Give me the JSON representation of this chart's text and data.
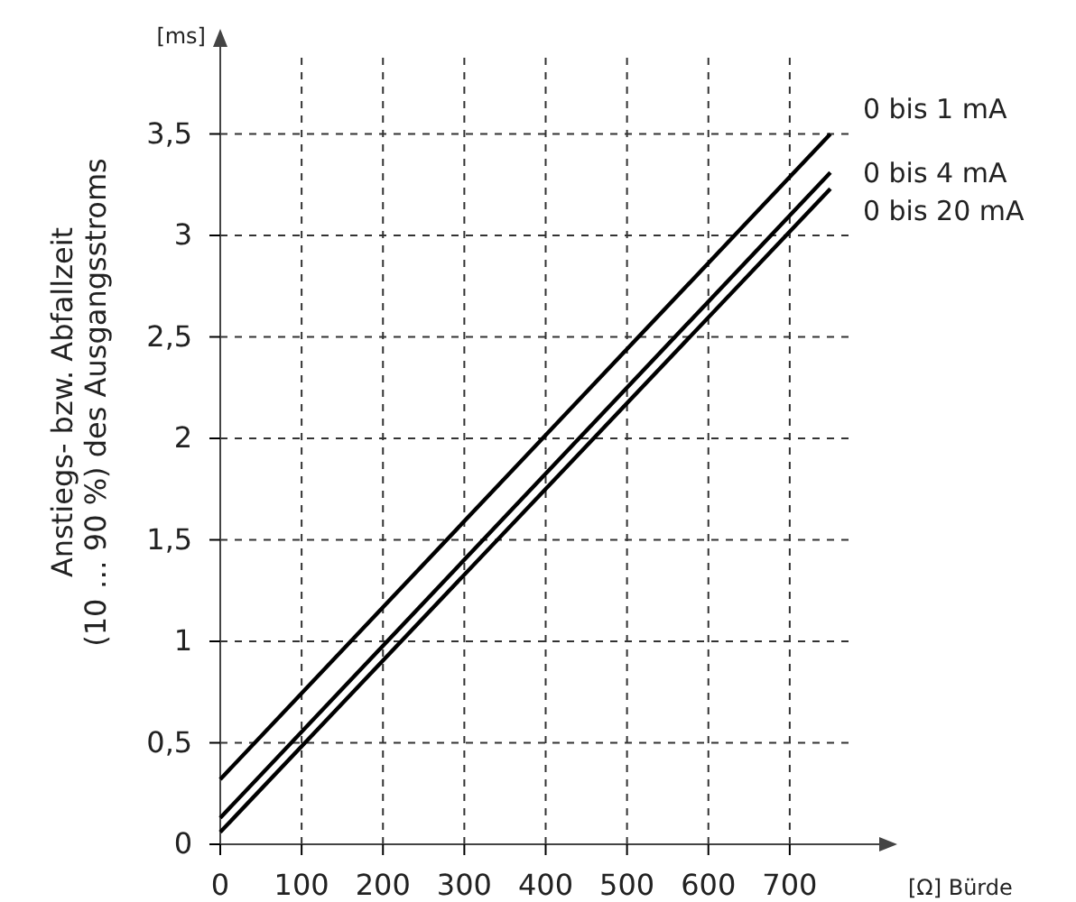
{
  "chart_data": {
    "type": "line",
    "xlabel": "[Ω] Bürde",
    "ylabel": "Anstiegs- bzw. Abfallzeit\n(10 … 90 %) des Ausgangsstroms",
    "annotations": [
      "[ms]"
    ],
    "x": [
      0,
      750
    ],
    "series": [
      {
        "name": "0 bis 1 mA",
        "color": "#000000",
        "values": [
          0.32,
          3.5
        ]
      },
      {
        "name": "0 bis 4 mA",
        "color": "#000000",
        "values": [
          0.13,
          3.31
        ]
      },
      {
        "name": "0 bis 20 mA",
        "color": "#000000",
        "values": [
          0.06,
          3.23
        ]
      }
    ],
    "xlim": [
      0,
      810
    ],
    "ylim": [
      0,
      4
    ],
    "xticks": [
      0,
      100,
      200,
      300,
      400,
      500,
      600,
      700
    ],
    "yticks": [
      {
        "value": 0,
        "label": "0"
      },
      {
        "value": 0.5,
        "label": "0,5"
      },
      {
        "value": 1,
        "label": "1"
      },
      {
        "value": 1.5,
        "label": "1,5"
      },
      {
        "value": 2,
        "label": "2"
      },
      {
        "value": 2.5,
        "label": "2,5"
      },
      {
        "value": 3,
        "label": "3"
      },
      {
        "value": 3.5,
        "label": "3,5"
      }
    ],
    "grid": true,
    "legend": false,
    "line_style": "solid",
    "marker": "none"
  }
}
